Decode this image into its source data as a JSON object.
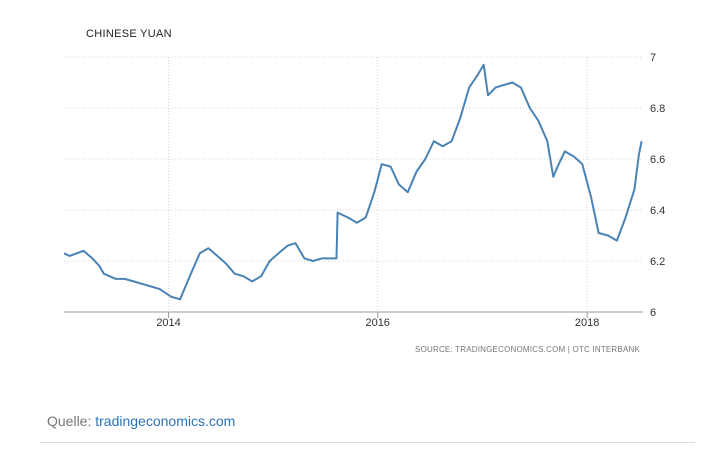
{
  "chart_data": {
    "type": "line",
    "title": "CHINESE YUAN",
    "source": "SOURCE: TRADINGECONOMICS.COM | OTC INTERBANK",
    "x_ticks": [
      "2014",
      "2016",
      "2018"
    ],
    "y_ticks": [
      "6",
      "6.2",
      "6.4",
      "6.6",
      "6.8",
      "7"
    ],
    "ylim": [
      6,
      7
    ],
    "xlim": [
      "2013-01-01",
      "2018-07-15"
    ],
    "grid": true,
    "line_color": "#4a82b4",
    "series": [
      {
        "points": [
          [
            "2013-01-01",
            6.23
          ],
          [
            "2013-01-20",
            6.22
          ],
          [
            "2013-02-15",
            6.23
          ],
          [
            "2013-03-10",
            6.24
          ],
          [
            "2013-04-10",
            6.21
          ],
          [
            "2013-05-05",
            6.18
          ],
          [
            "2013-05-20",
            6.15
          ],
          [
            "2013-06-10",
            6.14
          ],
          [
            "2013-07-01",
            6.13
          ],
          [
            "2013-08-01",
            6.13
          ],
          [
            "2013-09-01",
            6.12
          ],
          [
            "2013-10-01",
            6.11
          ],
          [
            "2013-11-01",
            6.1
          ],
          [
            "2013-12-01",
            6.09
          ],
          [
            "2014-01-10",
            6.06
          ],
          [
            "2014-02-10",
            6.05
          ],
          [
            "2014-03-01",
            6.1
          ],
          [
            "2014-03-20",
            6.15
          ],
          [
            "2014-04-20",
            6.23
          ],
          [
            "2014-05-20",
            6.25
          ],
          [
            "2014-06-20",
            6.22
          ],
          [
            "2014-07-20",
            6.19
          ],
          [
            "2014-08-20",
            6.15
          ],
          [
            "2014-09-20",
            6.14
          ],
          [
            "2014-10-20",
            6.12
          ],
          [
            "2014-11-20",
            6.14
          ],
          [
            "2014-12-20",
            6.2
          ],
          [
            "2015-01-20",
            6.23
          ],
          [
            "2015-02-20",
            6.26
          ],
          [
            "2015-03-20",
            6.27
          ],
          [
            "2015-04-20",
            6.21
          ],
          [
            "2015-05-20",
            6.2
          ],
          [
            "2015-06-20",
            6.21
          ],
          [
            "2015-08-10",
            6.21
          ],
          [
            "2015-08-14",
            6.39
          ],
          [
            "2015-09-20",
            6.37
          ],
          [
            "2015-10-20",
            6.35
          ],
          [
            "2015-11-20",
            6.37
          ],
          [
            "2015-12-20",
            6.47
          ],
          [
            "2016-01-15",
            6.58
          ],
          [
            "2016-02-15",
            6.57
          ],
          [
            "2016-03-15",
            6.5
          ],
          [
            "2016-04-15",
            6.47
          ],
          [
            "2016-05-15",
            6.55
          ],
          [
            "2016-06-15",
            6.6
          ],
          [
            "2016-07-15",
            6.67
          ],
          [
            "2016-08-15",
            6.65
          ],
          [
            "2016-09-15",
            6.67
          ],
          [
            "2016-10-15",
            6.76
          ],
          [
            "2016-11-15",
            6.88
          ],
          [
            "2016-12-15",
            6.93
          ],
          [
            "2017-01-05",
            6.97
          ],
          [
            "2017-01-20",
            6.85
          ],
          [
            "2017-02-15",
            6.88
          ],
          [
            "2017-03-15",
            6.89
          ],
          [
            "2017-04-15",
            6.9
          ],
          [
            "2017-05-15",
            6.88
          ],
          [
            "2017-06-15",
            6.8
          ],
          [
            "2017-07-15",
            6.75
          ],
          [
            "2017-08-15",
            6.67
          ],
          [
            "2017-09-05",
            6.53
          ],
          [
            "2017-09-20",
            6.57
          ],
          [
            "2017-10-15",
            6.63
          ],
          [
            "2017-11-15",
            6.61
          ],
          [
            "2017-12-15",
            6.58
          ],
          [
            "2018-01-15",
            6.45
          ],
          [
            "2018-02-10",
            6.31
          ],
          [
            "2018-03-15",
            6.3
          ],
          [
            "2018-04-15",
            6.28
          ],
          [
            "2018-05-15",
            6.37
          ],
          [
            "2018-06-15",
            6.48
          ],
          [
            "2018-07-01",
            6.62
          ],
          [
            "2018-07-10",
            6.67
          ]
        ]
      }
    ]
  },
  "footer": {
    "label": "Quelle: ",
    "link_text": "tradingeconomics.com"
  }
}
